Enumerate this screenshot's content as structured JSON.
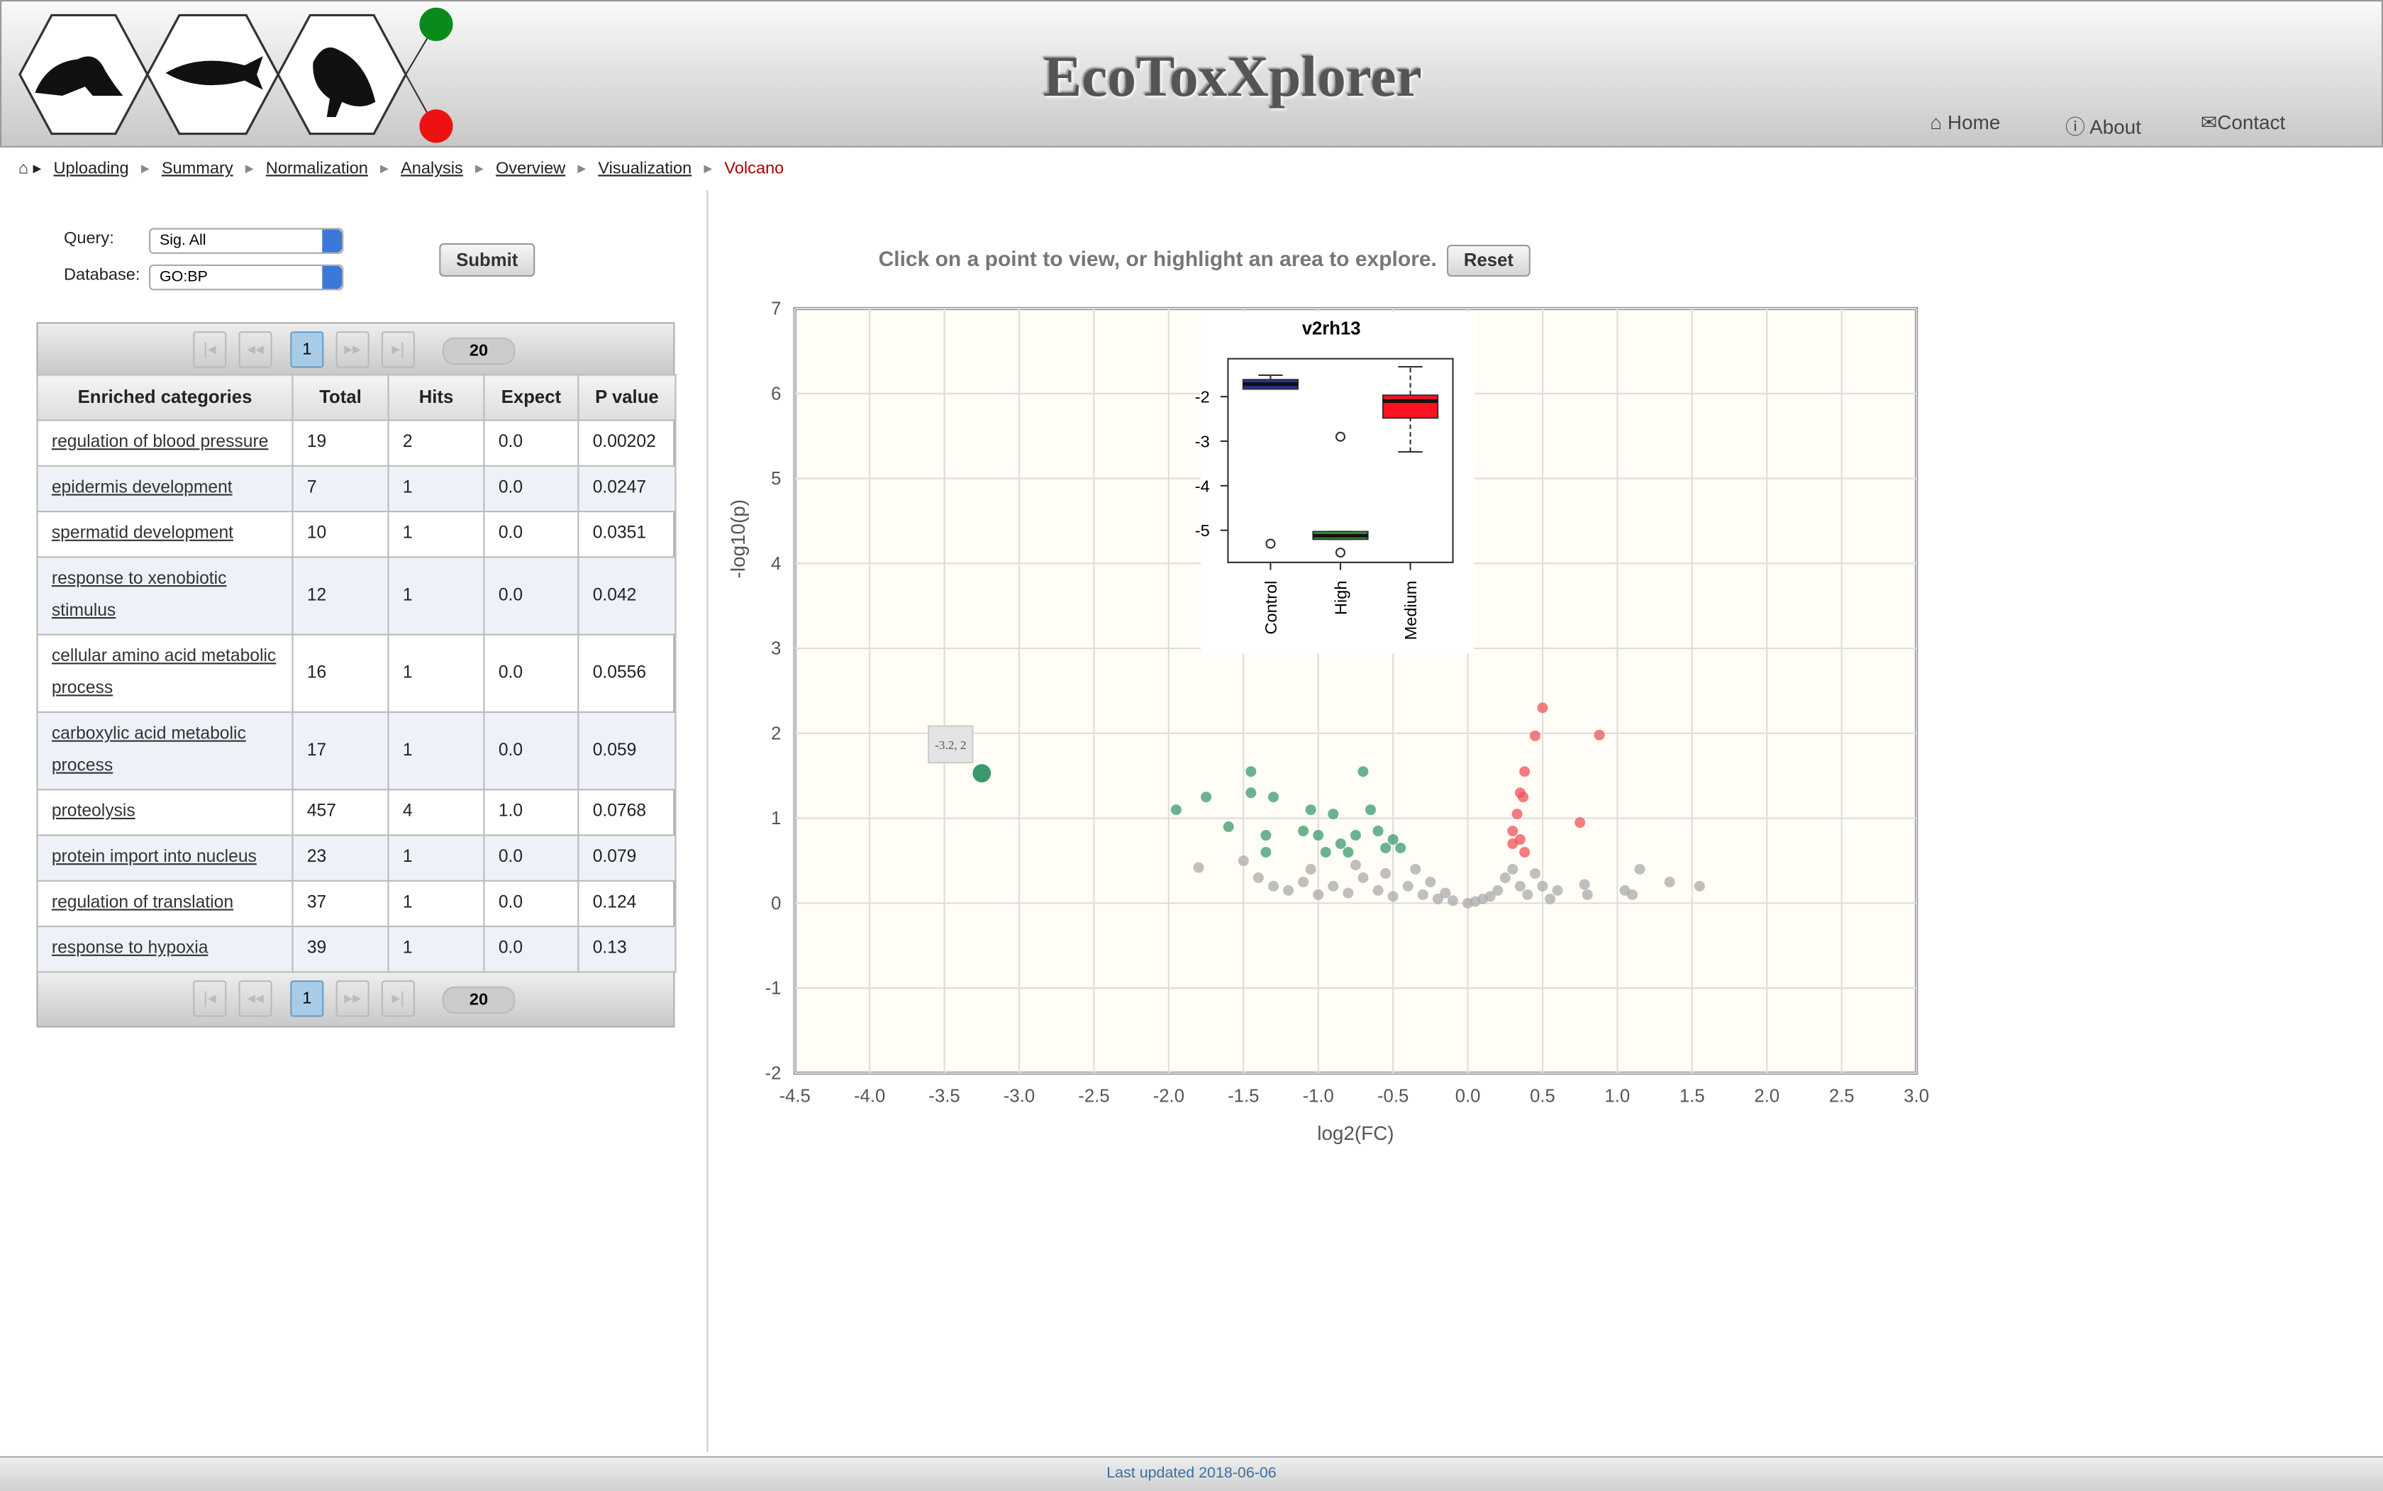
{
  "header": {
    "title": "EcoToxXplorer",
    "nav": [
      "Home",
      "About",
      "Contact"
    ]
  },
  "breadcrumb": [
    "Uploading",
    "Summary",
    "Normalization",
    "Analysis",
    "Overview",
    "Visualization",
    "Volcano"
  ],
  "form": {
    "query_label": "Query:",
    "query_value": "Sig. All",
    "database_label": "Database:",
    "database_value": "GO:BP",
    "submit": "Submit"
  },
  "table": {
    "page": "1",
    "page_size": "20",
    "columns": [
      "Enriched categories",
      "Total",
      "Hits",
      "Expect",
      "P value"
    ],
    "rows": [
      [
        "regulation of blood pressure",
        "19",
        "2",
        "0.0",
        "0.00202"
      ],
      [
        "epidermis development",
        "7",
        "1",
        "0.0",
        "0.0247"
      ],
      [
        "spermatid development",
        "10",
        "1",
        "0.0",
        "0.0351"
      ],
      [
        "response to xenobiotic stimulus",
        "12",
        "1",
        "0.0",
        "0.042"
      ],
      [
        "cellular amino acid metabolic process",
        "16",
        "1",
        "0.0",
        "0.0556"
      ],
      [
        "carboxylic acid metabolic process",
        "17",
        "1",
        "0.0",
        "0.059"
      ],
      [
        "proteolysis",
        "457",
        "4",
        "1.0",
        "0.0768"
      ],
      [
        "protein import into nucleus",
        "23",
        "1",
        "0.0",
        "0.079"
      ],
      [
        "regulation of translation",
        "37",
        "1",
        "0.0",
        "0.124"
      ],
      [
        "response to hypoxia",
        "39",
        "1",
        "0.0",
        "0.13"
      ]
    ]
  },
  "instructions": "Click on a point to view, or highlight an area to explore.",
  "reset": "Reset",
  "chart_data": {
    "type": "scatter",
    "x_label": "log2(FC)",
    "y_label": "-log10(p)",
    "xlim": [
      -4.5,
      3
    ],
    "ylim": [
      -2,
      7
    ],
    "xticks": [
      -4.5,
      {
        "value": -4,
        "label": "-4.0"
      },
      -3.5,
      {
        "value": -3,
        "label": "-3.0"
      },
      -2.5,
      {
        "value": -2,
        "label": "-2.0"
      },
      -1.5,
      {
        "value": -1,
        "label": "-1.0"
      },
      -0.5,
      {
        "value": 0,
        "label": "0.0"
      },
      0.5,
      {
        "value": 1,
        "label": "1.0"
      },
      1.5,
      {
        "value": 2,
        "label": "2.0"
      },
      2.5,
      {
        "value": 3,
        "label": "3.0"
      }
    ],
    "yticks": [
      -2,
      -1,
      0,
      1,
      2,
      3,
      4,
      5,
      6,
      7
    ],
    "grid": true,
    "tooltip": "-3.2, 2",
    "series": [
      {
        "color": "#aaaaaa",
        "x": [
          -1.8,
          -1.5,
          -1.4,
          -1.3,
          -1.2,
          -1.1,
          -1.0,
          -0.9,
          -0.8,
          -0.7,
          -0.6,
          -0.5,
          -0.4,
          -0.3,
          -0.2,
          -0.1,
          0,
          0.1,
          0.2,
          0.25,
          0.3,
          0.35,
          0.4,
          0.45,
          0.5,
          0.55,
          0.6,
          0.8,
          0.78,
          1.05,
          1.1,
          1.15,
          1.35,
          1.55,
          -1.05,
          -0.75,
          -0.25,
          -0.15,
          0.15,
          -0.55,
          -0.35,
          0.05
        ],
        "values": [
          0.42,
          0.5,
          0.3,
          0.2,
          0.15,
          0.25,
          0.1,
          0.2,
          0.12,
          0.3,
          0.15,
          0.08,
          0.2,
          0.1,
          0.05,
          0.03,
          0,
          0.05,
          0.15,
          0.3,
          0.4,
          0.2,
          0.1,
          0.35,
          0.2,
          0.05,
          0.15,
          0.1,
          0.22,
          0.15,
          0.1,
          0.4,
          0.25,
          0.2,
          0.4,
          0.45,
          0.25,
          0.12,
          0.08,
          0.35,
          0.4,
          0.02
        ]
      },
      {
        "color": "#3a9a6a",
        "x": [
          -3.25,
          -1.95,
          -1.75,
          -1.6,
          -1.45,
          -1.45,
          -1.3,
          -1.35,
          -1.35,
          -1.1,
          -1.0,
          -0.9,
          -0.85,
          -0.75,
          -0.7,
          -0.65,
          -0.6,
          -0.55,
          -0.5,
          -0.45,
          -0.95,
          -1.05,
          -0.8
        ],
        "values": [
          1.53,
          1.1,
          1.25,
          0.9,
          1.55,
          1.3,
          1.25,
          0.8,
          0.6,
          0.85,
          0.8,
          1.05,
          0.7,
          0.8,
          1.55,
          1.1,
          0.85,
          0.65,
          0.75,
          0.65,
          0.6,
          1.1,
          0.6
        ]
      },
      {
        "color": "#f0505a",
        "x": [
          0.5,
          0.45,
          0.88,
          0.38,
          0.35,
          0.37,
          0.33,
          0.3,
          0.35,
          0.75,
          0.3,
          0.38
        ],
        "values": [
          2.3,
          1.97,
          1.98,
          1.55,
          1.3,
          1.25,
          1.05,
          0.85,
          0.75,
          0.95,
          0.7,
          0.6
        ]
      }
    ],
    "inset": {
      "type": "box",
      "title": "v2rh13",
      "categories": [
        "Control",
        "High",
        "Medium"
      ],
      "ylim": [
        -5.72,
        -1.15
      ],
      "yticks": [
        -2,
        -3,
        -4,
        -5
      ],
      "colors": [
        "#2233aa",
        "#33bb33",
        "#ff1122"
      ],
      "boxes": [
        {
          "whisker_low": -1.83,
          "q1": -1.83,
          "median": -1.72,
          "q3": -1.62,
          "whisker_high": -1.52,
          "outliers": [
            -5.3
          ]
        },
        {
          "whisker_low": -5.2,
          "q1": -5.2,
          "median": -5.12,
          "q3": -5.03,
          "whisker_high": -5.03,
          "outliers": [
            -2.9,
            -5.5
          ]
        },
        {
          "whisker_low": -3.24,
          "q1": -2.48,
          "median": -2.1,
          "q3": -1.97,
          "whisker_high": -1.33,
          "outliers": []
        }
      ]
    }
  },
  "footer": "Last updated 2018-06-06"
}
